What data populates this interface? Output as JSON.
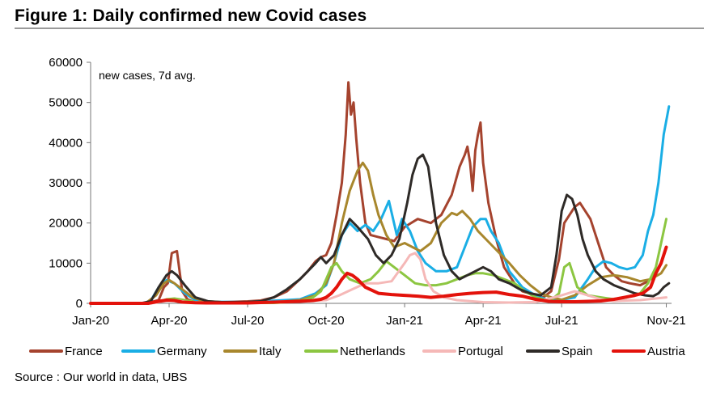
{
  "figure": {
    "title": "Figure 1: Daily confirmed new Covid cases",
    "source": "Source : Our world in data, UBS"
  },
  "chart_data": {
    "type": "line",
    "annotation": "new cases, 7d avg.",
    "x_tick_labels": [
      "Jan-20",
      "Apr-20",
      "Jul-20",
      "Oct-20",
      "Jan-21",
      "Apr-21",
      "Jul-21",
      "Nov-21"
    ],
    "x_tick_values": [
      0,
      3,
      6,
      9,
      12,
      15,
      18,
      22
    ],
    "x_unit": "months since Jan-20",
    "xlim": [
      0,
      22.2
    ],
    "ylim": [
      0,
      60000
    ],
    "y_ticks": [
      0,
      10000,
      20000,
      30000,
      40000,
      50000,
      60000
    ],
    "grid": false,
    "legend_position": "bottom",
    "series": [
      {
        "name": "France",
        "color": "#a5432e",
        "x": [
          0,
          1.9,
          2.3,
          2.6,
          2.8,
          2.95,
          3.1,
          3.3,
          3.5,
          3.7,
          3.9,
          4.2,
          5,
          6,
          6.5,
          7,
          7.5,
          8,
          8.3,
          8.6,
          8.8,
          9,
          9.2,
          9.4,
          9.6,
          9.75,
          9.85,
          9.95,
          10.05,
          10.15,
          10.3,
          10.5,
          10.7,
          11,
          11.3,
          11.6,
          12,
          12.5,
          13,
          13.4,
          13.8,
          14.1,
          14.3,
          14.4,
          14.5,
          14.6,
          14.7,
          14.8,
          14.9,
          15.0,
          15.2,
          15.5,
          15.8,
          16.2,
          16.5,
          17,
          17.3,
          17.6,
          17.9,
          18.1,
          18.3,
          18.5,
          18.7,
          18.9,
          19.1,
          19.4,
          19.7,
          20,
          20.3,
          20.6,
          21,
          21.3,
          21.6,
          21.8,
          22
        ],
        "y": [
          0,
          0,
          300,
          800,
          4000,
          5000,
          12500,
          13000,
          3000,
          1000,
          500,
          400,
          300,
          500,
          700,
          1500,
          3000,
          6000,
          8000,
          10500,
          11500,
          12000,
          15000,
          22000,
          30000,
          42000,
          55000,
          47000,
          50000,
          41000,
          30000,
          20000,
          17000,
          16500,
          16000,
          15500,
          19000,
          21000,
          20000,
          22000,
          27000,
          34000,
          37000,
          39000,
          35000,
          28000,
          38000,
          42000,
          45000,
          35000,
          25000,
          16000,
          9000,
          5000,
          3000,
          2000,
          1500,
          3000,
          11000,
          20000,
          22000,
          24000,
          25000,
          23000,
          21000,
          15000,
          9000,
          7000,
          5500,
          5000,
          4500,
          5500,
          7500,
          10000,
          14000
        ]
      },
      {
        "name": "Germany",
        "color": "#1aaee5",
        "x": [
          0,
          2,
          2.3,
          2.6,
          2.9,
          3.2,
          3.6,
          4,
          4.5,
          6,
          8,
          8.6,
          9,
          9.3,
          9.6,
          9.9,
          10.2,
          10.5,
          10.8,
          11.1,
          11.4,
          11.7,
          11.9,
          12.2,
          12.5,
          12.8,
          13.2,
          13.6,
          14,
          14.3,
          14.6,
          14.9,
          15.1,
          15.3,
          15.6,
          16,
          16.5,
          17,
          17.5,
          18,
          18.5,
          19,
          19.3,
          19.6,
          19.9,
          20.2,
          20.5,
          20.8,
          21.1,
          21.3,
          21.5,
          21.7,
          21.9,
          22.1
        ],
        "y": [
          0,
          0,
          700,
          4000,
          5800,
          5000,
          2500,
          800,
          400,
          300,
          1000,
          2500,
          4500,
          10000,
          17000,
          20000,
          18000,
          19500,
          18000,
          21000,
          25500,
          17000,
          21000,
          18000,
          13000,
          10000,
          8000,
          8000,
          9000,
          14000,
          19000,
          21000,
          21000,
          18000,
          15000,
          8000,
          4000,
          2000,
          800,
          900,
          1500,
          6000,
          9000,
          10500,
          10000,
          9000,
          8500,
          9000,
          12000,
          18000,
          22000,
          30000,
          42000,
          49000
        ]
      },
      {
        "name": "Italy",
        "color": "#a8872d",
        "x": [
          0,
          2.1,
          2.5,
          2.8,
          3,
          3.2,
          3.5,
          3.9,
          4.3,
          5,
          6,
          7,
          8,
          8.6,
          9,
          9.3,
          9.6,
          9.9,
          10.2,
          10.4,
          10.6,
          10.8,
          11,
          11.3,
          11.6,
          12,
          12.3,
          12.6,
          13,
          13.4,
          13.8,
          14,
          14.2,
          14.5,
          14.8,
          15.1,
          15.4,
          15.7,
          16,
          16.4,
          16.8,
          17.2,
          17.6,
          18,
          18.5,
          19,
          19.5,
          20,
          20.5,
          21,
          21.4,
          21.8,
          22
        ],
        "y": [
          0,
          0,
          2000,
          5000,
          5800,
          5000,
          3500,
          1500,
          600,
          300,
          200,
          250,
          800,
          2000,
          5000,
          10000,
          20000,
          28000,
          33000,
          35000,
          33000,
          27000,
          22000,
          17000,
          14000,
          15000,
          14000,
          13000,
          15000,
          20000,
          22500,
          22000,
          23000,
          21000,
          18000,
          16000,
          14000,
          12000,
          10000,
          7000,
          4500,
          2500,
          1500,
          900,
          2000,
          4500,
          6500,
          7000,
          6500,
          5500,
          6000,
          7500,
          9500
        ]
      },
      {
        "name": "Netherlands",
        "color": "#8cc641",
        "x": [
          0,
          2.2,
          2.6,
          2.9,
          3.2,
          3.6,
          4,
          4.5,
          6,
          7,
          8,
          8.5,
          8.8,
          9,
          9.2,
          9.4,
          9.6,
          9.9,
          10.3,
          10.7,
          11,
          11.3,
          11.6,
          12,
          12.4,
          12.8,
          13.2,
          13.6,
          14,
          14.4,
          14.7,
          15,
          15.4,
          15.8,
          16.2,
          16.6,
          17,
          17.3,
          17.6,
          17.9,
          18.1,
          18.3,
          18.6,
          19,
          19.5,
          20,
          20.5,
          21,
          21.3,
          21.6,
          21.8,
          22
        ],
        "y": [
          0,
          0,
          400,
          1000,
          1200,
          800,
          300,
          150,
          100,
          100,
          500,
          1500,
          3000,
          6000,
          9000,
          10000,
          8000,
          6000,
          5000,
          6000,
          8000,
          10500,
          9000,
          7000,
          5000,
          4500,
          4500,
          5000,
          6000,
          7000,
          7500,
          7500,
          7000,
          6000,
          5000,
          3000,
          1500,
          1000,
          800,
          2500,
          9000,
          10000,
          4000,
          2000,
          1500,
          1000,
          1500,
          2500,
          5000,
          9000,
          15000,
          21000
        ]
      },
      {
        "name": "Portugal",
        "color": "#f5b8b7",
        "x": [
          0,
          2.3,
          2.8,
          3.2,
          3.7,
          4.5,
          6,
          8,
          9,
          9.5,
          10,
          10.5,
          11,
          11.5,
          12,
          12.2,
          12.4,
          12.6,
          12.8,
          13.1,
          13.5,
          14,
          15,
          16,
          17,
          18,
          18.5,
          19,
          19.5,
          20,
          21,
          22
        ],
        "y": [
          0,
          0,
          500,
          800,
          300,
          200,
          300,
          500,
          800,
          2000,
          3500,
          5000,
          5000,
          5500,
          10000,
          12000,
          12500,
          11000,
          6000,
          3000,
          1500,
          800,
          300,
          200,
          300,
          2000,
          3000,
          2000,
          1000,
          600,
          800,
          1500
        ]
      },
      {
        "name": "Spain",
        "color": "#2e2a27",
        "x": [
          0,
          1.9,
          2.3,
          2.6,
          2.9,
          3.1,
          3.3,
          3.6,
          4,
          4.5,
          5,
          6,
          6.5,
          7,
          7.5,
          8,
          8.3,
          8.6,
          8.8,
          9,
          9.3,
          9.6,
          9.9,
          10.2,
          10.6,
          10.9,
          11.2,
          11.5,
          11.8,
          12.1,
          12.3,
          12.5,
          12.7,
          12.9,
          13.2,
          13.5,
          13.8,
          14.1,
          14.4,
          14.7,
          15,
          15.3,
          15.6,
          16,
          16.4,
          16.8,
          17.2,
          17.6,
          17.8,
          18,
          18.2,
          18.4,
          18.6,
          18.8,
          19,
          19.3,
          19.6,
          20,
          20.4,
          20.8,
          21.2,
          21.5,
          21.7,
          21.9,
          22.1
        ],
        "y": [
          0,
          0,
          500,
          4000,
          7000,
          8000,
          7000,
          4500,
          1500,
          500,
          300,
          300,
          500,
          1500,
          3500,
          6000,
          8000,
          10000,
          11500,
          10000,
          12000,
          17000,
          21000,
          19000,
          16000,
          12000,
          10000,
          12000,
          16000,
          25000,
          32000,
          36000,
          37000,
          34000,
          20000,
          12000,
          8000,
          6000,
          7000,
          8000,
          9000,
          8000,
          6000,
          5000,
          3500,
          2500,
          2000,
          4000,
          12000,
          23000,
          27000,
          26000,
          22000,
          16000,
          12000,
          8000,
          6000,
          4500,
          3500,
          2500,
          2000,
          1800,
          2500,
          4000,
          5000
        ]
      },
      {
        "name": "Austria",
        "color": "#e3120b",
        "x": [
          0,
          2.2,
          2.6,
          2.9,
          3.2,
          3.5,
          4,
          4.5,
          6,
          7,
          8,
          8.5,
          8.8,
          9,
          9.2,
          9.4,
          9.6,
          9.8,
          10,
          10.2,
          10.5,
          11,
          11.5,
          12,
          12.5,
          13,
          13.5,
          14,
          14.5,
          15,
          15.5,
          16,
          16.5,
          17,
          17.5,
          18,
          18.5,
          19,
          19.5,
          20,
          20.4,
          20.8,
          21.1,
          21.4,
          21.6,
          21.8,
          22
        ],
        "y": [
          0,
          0,
          500,
          800,
          700,
          300,
          150,
          100,
          100,
          300,
          500,
          700,
          1000,
          1500,
          2500,
          4000,
          6000,
          7500,
          7000,
          6000,
          4000,
          2500,
          2200,
          2000,
          1800,
          1500,
          1800,
          2200,
          2500,
          2700,
          2800,
          2200,
          1800,
          1000,
          500,
          400,
          400,
          500,
          600,
          1000,
          1500,
          2000,
          2500,
          4000,
          7500,
          10000,
          14000
        ]
      }
    ]
  }
}
